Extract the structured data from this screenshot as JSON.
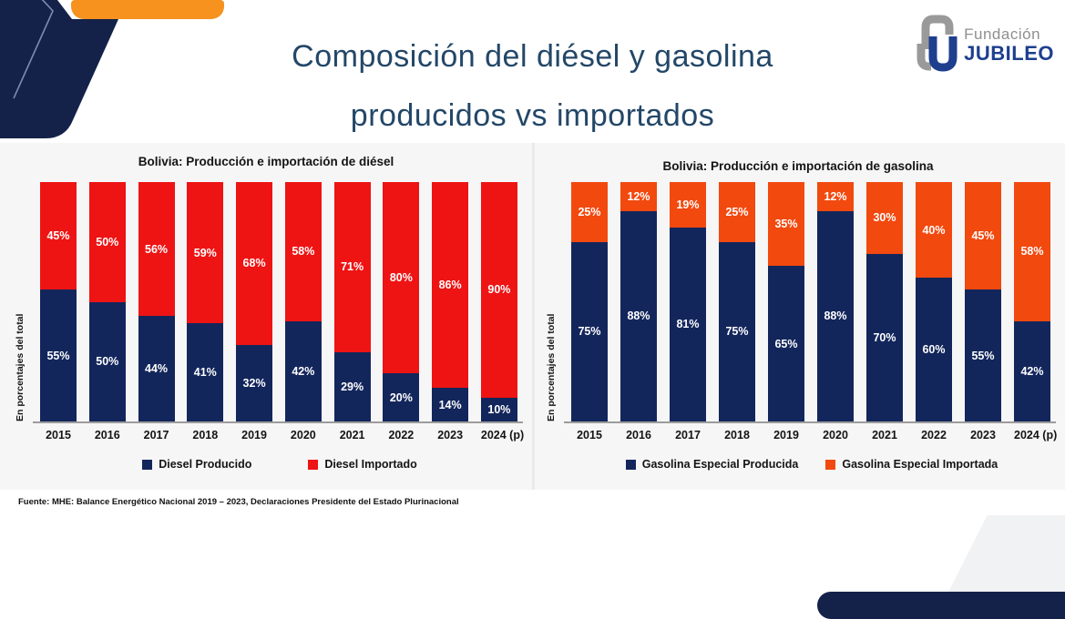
{
  "slide": {
    "title_line1": "Composición del diésel y gasolina",
    "title_line2": "producidos vs importados",
    "source": "Fuente: MHE: Balance Energético Nacional 2019 – 2023, Declaraciones Presidente del Estado Plurinacional",
    "logo": {
      "line1": "Fundación",
      "line2": "JUBILEO"
    }
  },
  "colors": {
    "title": "#234768",
    "navy_bar": "#13265c",
    "red_bar": "#ee1414",
    "orange_bar": "#f2490f",
    "orange_accent": "#f6921d",
    "navy_decor": "#14224a",
    "panel_bg": "#f6f6f7",
    "logo_gray": "#8f8f8f",
    "logo_blue": "#1d3f8e"
  },
  "chart_data": [
    {
      "type": "bar",
      "stacked": true,
      "title": "Bolivia: Producción e importación de diésel",
      "ylabel": "En porcentajes del total",
      "xlabel": "",
      "ylim": [
        0,
        100
      ],
      "grid": false,
      "legend_position": "bottom",
      "value_label_format": "{v}%",
      "categories": [
        "2015",
        "2016",
        "2017",
        "2018",
        "2019",
        "2020",
        "2021",
        "2022",
        "2023",
        "2024 (p)"
      ],
      "series": [
        {
          "name": "Diesel Producido",
          "color": "#13265c",
          "values": [
            55,
            50,
            44,
            41,
            32,
            42,
            29,
            20,
            14,
            10
          ]
        },
        {
          "name": "Diesel Importado",
          "color": "#ee1414",
          "values": [
            45,
            50,
            56,
            59,
            68,
            58,
            71,
            80,
            86,
            90
          ]
        }
      ]
    },
    {
      "type": "bar",
      "stacked": true,
      "title": "Bolivia: Producción e importación de gasolina",
      "ylabel": "En porcentajes del total",
      "xlabel": "",
      "ylim": [
        0,
        100
      ],
      "grid": false,
      "legend_position": "bottom",
      "value_label_format": "{v}%",
      "categories": [
        "2015",
        "2016",
        "2017",
        "2018",
        "2019",
        "2020",
        "2021",
        "2022",
        "2023",
        "2024 (p)"
      ],
      "series": [
        {
          "name": "Gasolina Especial Producida",
          "color": "#13265c",
          "values": [
            75,
            88,
            81,
            75,
            65,
            88,
            70,
            60,
            55,
            42
          ]
        },
        {
          "name": "Gasolina Especial Importada",
          "color": "#f2490f",
          "values": [
            25,
            12,
            19,
            25,
            35,
            12,
            30,
            40,
            45,
            58
          ]
        }
      ]
    }
  ]
}
